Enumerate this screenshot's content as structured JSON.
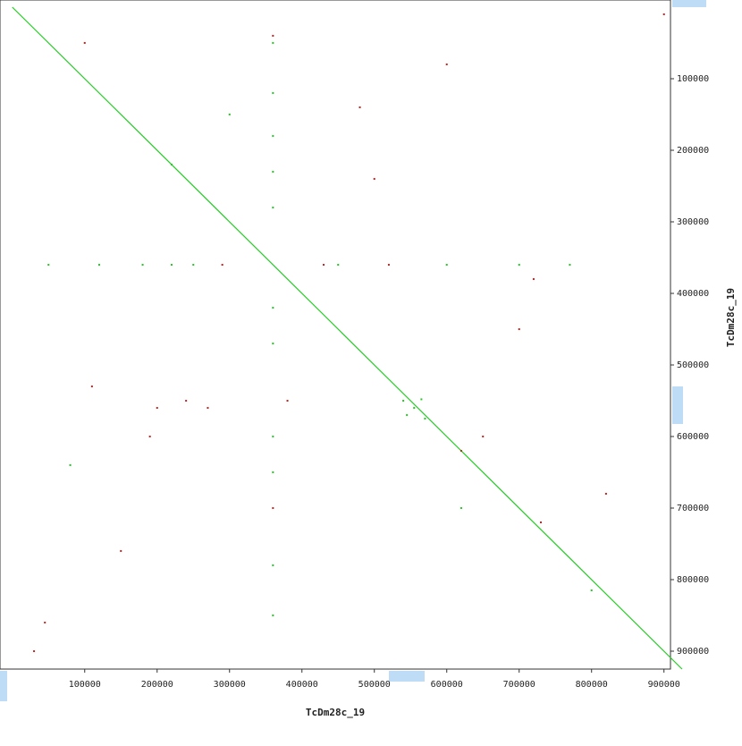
{
  "chart_data": {
    "type": "scatter",
    "x_label": "TcDm28c_19",
    "y_label": "TcDm28c_19",
    "xlim": [
      -17000,
      909000
    ],
    "ylim": [
      -10000,
      925000
    ],
    "y_inverted": true,
    "xticks": [
      100000,
      200000,
      300000,
      400000,
      500000,
      600000,
      700000,
      800000,
      900000
    ],
    "yticks": [
      100000,
      200000,
      300000,
      400000,
      500000,
      600000,
      700000,
      800000,
      900000
    ],
    "series": [
      {
        "mode": "line",
        "color": "#22cc22",
        "x": [
          0,
          925000
        ],
        "y": [
          0,
          925000
        ]
      },
      {
        "mode": "dots",
        "color": "#22cc22",
        "x": [
          360000,
          360000,
          360000,
          360000,
          360000,
          360000,
          360000,
          360000,
          360000,
          360000,
          360000,
          50000,
          120000,
          180000,
          220000,
          250000,
          450000,
          600000,
          700000,
          770000,
          540000,
          555000,
          570000,
          545000,
          565000,
          800000,
          220000,
          620000,
          300000,
          80000
        ],
        "y": [
          50000,
          120000,
          180000,
          230000,
          280000,
          420000,
          470000,
          600000,
          650000,
          780000,
          850000,
          360000,
          360000,
          360000,
          360000,
          360000,
          360000,
          360000,
          360000,
          360000,
          550000,
          560000,
          575000,
          570000,
          548000,
          815000,
          220000,
          700000,
          150000,
          640000
        ]
      },
      {
        "mode": "dots",
        "color": "#cc2222",
        "x": [
          360000,
          360000,
          290000,
          430000,
          520000,
          110000,
          730000,
          720000,
          620000,
          30000,
          900000,
          480000,
          500000,
          200000,
          240000,
          270000,
          190000,
          650000,
          45000,
          820000,
          100000,
          600000,
          380000,
          700000,
          150000
        ],
        "y": [
          40000,
          700000,
          360000,
          360000,
          360000,
          530000,
          720000,
          380000,
          620000,
          900000,
          10000,
          140000,
          240000,
          560000,
          550000,
          560000,
          600000,
          600000,
          860000,
          680000,
          50000,
          80000,
          550000,
          450000,
          760000
        ]
      }
    ]
  }
}
